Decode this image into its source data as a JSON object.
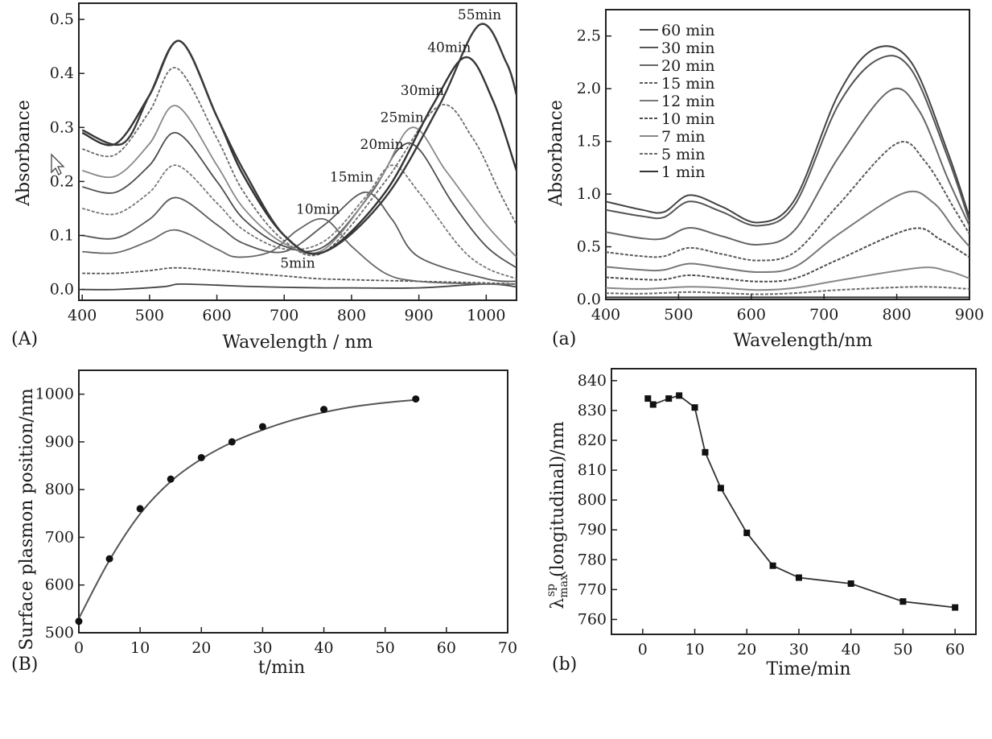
{
  "figure": {
    "panel_letters": [
      "(A)",
      "(a)",
      "(B)",
      "(b)"
    ]
  },
  "chart_data": [
    {
      "type": "line",
      "panel": "(A)",
      "xlabel": "Wavelength / nm",
      "ylabel": "Absorbance",
      "xlim": [
        395,
        1045
      ],
      "ylim": [
        -0.02,
        0.53
      ],
      "xticks": [
        400,
        500,
        600,
        700,
        800,
        900,
        1000
      ],
      "yticks": [
        0.0,
        0.1,
        0.2,
        0.3,
        0.4,
        0.5
      ],
      "grid": false,
      "curve_labels": [
        {
          "text": "5min",
          "x": 720,
          "y": 0.04
        },
        {
          "text": "10min",
          "x": 750,
          "y": 0.14
        },
        {
          "text": "15min",
          "x": 800,
          "y": 0.2
        },
        {
          "text": "20min",
          "x": 845,
          "y": 0.26
        },
        {
          "text": "25min",
          "x": 875,
          "y": 0.31
        },
        {
          "text": "30min",
          "x": 905,
          "y": 0.36
        },
        {
          "text": "40min",
          "x": 945,
          "y": 0.44
        },
        {
          "text": "55min",
          "x": 990,
          "y": 0.5
        }
      ],
      "series": [
        {
          "x": [
            400,
            450,
            520,
            545,
            600,
            640,
            700,
            760,
            800,
            900,
            1000,
            1045
          ],
          "y": [
            0.0,
            0.0,
            0.005,
            0.01,
            0.008,
            0.006,
            0.004,
            0.003,
            0.003,
            0.003,
            0.01,
            0.005
          ]
        },
        {
          "x": [
            400,
            450,
            500,
            540,
            600,
            650,
            700,
            750,
            800,
            900,
            1000,
            1045
          ],
          "y": [
            0.03,
            0.03,
            0.035,
            0.04,
            0.035,
            0.03,
            0.025,
            0.02,
            0.018,
            0.015,
            0.012,
            0.01
          ]
        },
        {
          "x": [
            400,
            450,
            500,
            540,
            600,
            630,
            680,
            720,
            760,
            800,
            850,
            900,
            1000,
            1045
          ],
          "y": [
            0.07,
            0.068,
            0.09,
            0.11,
            0.075,
            0.06,
            0.07,
            0.11,
            0.13,
            0.08,
            0.03,
            0.015,
            0.01,
            0.01
          ]
        },
        {
          "x": [
            400,
            450,
            500,
            540,
            600,
            640,
            700,
            760,
            820,
            860,
            900,
            1000,
            1045
          ],
          "y": [
            0.1,
            0.095,
            0.13,
            0.17,
            0.12,
            0.085,
            0.07,
            0.12,
            0.18,
            0.13,
            0.06,
            0.02,
            0.015
          ]
        },
        {
          "x": [
            400,
            450,
            500,
            540,
            600,
            640,
            700,
            760,
            820,
            860,
            900,
            960,
            1000,
            1045
          ],
          "y": [
            0.15,
            0.14,
            0.18,
            0.23,
            0.16,
            0.11,
            0.075,
            0.09,
            0.17,
            0.23,
            0.18,
            0.08,
            0.04,
            0.02
          ]
        },
        {
          "x": [
            400,
            450,
            500,
            540,
            600,
            640,
            700,
            760,
            830,
            870,
            900,
            950,
            1000,
            1045
          ],
          "y": [
            0.19,
            0.18,
            0.23,
            0.29,
            0.2,
            0.13,
            0.08,
            0.08,
            0.18,
            0.26,
            0.26,
            0.16,
            0.08,
            0.04
          ]
        },
        {
          "x": [
            400,
            450,
            500,
            540,
            600,
            640,
            700,
            760,
            840,
            890,
            940,
            1000,
            1045
          ],
          "y": [
            0.22,
            0.21,
            0.27,
            0.34,
            0.23,
            0.15,
            0.085,
            0.075,
            0.2,
            0.3,
            0.22,
            0.12,
            0.06
          ]
        },
        {
          "x": [
            400,
            450,
            500,
            540,
            600,
            640,
            700,
            760,
            850,
            930,
            980,
            1020,
            1045
          ],
          "y": [
            0.26,
            0.25,
            0.33,
            0.41,
            0.28,
            0.18,
            0.09,
            0.07,
            0.2,
            0.34,
            0.28,
            0.18,
            0.12
          ]
        },
        {
          "x": [
            400,
            450,
            500,
            545,
            600,
            640,
            700,
            760,
            850,
            920,
            970,
            1010,
            1045
          ],
          "y": [
            0.29,
            0.27,
            0.36,
            0.46,
            0.32,
            0.21,
            0.1,
            0.07,
            0.18,
            0.34,
            0.43,
            0.35,
            0.22
          ]
        },
        {
          "x": [
            400,
            460,
            500,
            545,
            600,
            640,
            700,
            760,
            850,
            930,
            990,
            1030,
            1045
          ],
          "y": [
            0.295,
            0.27,
            0.36,
            0.46,
            0.32,
            0.22,
            0.1,
            0.07,
            0.17,
            0.34,
            0.49,
            0.42,
            0.36
          ]
        }
      ]
    },
    {
      "type": "line",
      "panel": "(a)",
      "xlabel": "Wavelength/nm",
      "ylabel": "Absorbance",
      "xlim": [
        400,
        900
      ],
      "ylim": [
        0.0,
        2.75
      ],
      "xticks": [
        400,
        500,
        600,
        700,
        800,
        900
      ],
      "yticks": [
        0.0,
        0.5,
        1.0,
        1.5,
        2.0,
        2.5
      ],
      "grid": false,
      "legend_position": "top-left",
      "series": [
        {
          "name": "60 min",
          "x": [
            400,
            450,
            480,
            515,
            560,
            610,
            660,
            720,
            770,
            820,
            870,
            900
          ],
          "y": [
            0.93,
            0.85,
            0.83,
            0.99,
            0.88,
            0.73,
            0.95,
            1.95,
            2.38,
            2.25,
            1.4,
            0.78
          ]
        },
        {
          "name": "30 min",
          "x": [
            400,
            450,
            480,
            515,
            560,
            610,
            660,
            720,
            775,
            820,
            870,
            900
          ],
          "y": [
            0.85,
            0.79,
            0.78,
            0.93,
            0.83,
            0.7,
            0.9,
            1.85,
            2.28,
            2.18,
            1.35,
            0.74
          ]
        },
        {
          "name": "20 min",
          "x": [
            400,
            450,
            480,
            515,
            560,
            610,
            660,
            720,
            790,
            830,
            870,
            900
          ],
          "y": [
            0.64,
            0.58,
            0.58,
            0.68,
            0.6,
            0.52,
            0.66,
            1.35,
            1.98,
            1.8,
            1.15,
            0.7
          ]
        },
        {
          "name": "15 min",
          "x": [
            400,
            450,
            480,
            515,
            560,
            610,
            660,
            720,
            800,
            840,
            880,
            900
          ],
          "y": [
            0.45,
            0.41,
            0.41,
            0.49,
            0.43,
            0.37,
            0.45,
            0.9,
            1.48,
            1.3,
            0.85,
            0.62
          ]
        },
        {
          "name": "12 min",
          "x": [
            400,
            450,
            480,
            515,
            560,
            610,
            660,
            720,
            810,
            850,
            880,
            900
          ],
          "y": [
            0.31,
            0.28,
            0.28,
            0.34,
            0.3,
            0.26,
            0.31,
            0.62,
            1.01,
            0.92,
            0.66,
            0.5
          ]
        },
        {
          "name": "10 min",
          "x": [
            400,
            450,
            480,
            515,
            560,
            610,
            660,
            720,
            820,
            860,
            900
          ],
          "y": [
            0.21,
            0.19,
            0.19,
            0.23,
            0.2,
            0.17,
            0.2,
            0.38,
            0.67,
            0.57,
            0.4
          ]
        },
        {
          "name": "7 min",
          "x": [
            400,
            450,
            515,
            560,
            610,
            660,
            720,
            830,
            870,
            900
          ],
          "y": [
            0.11,
            0.1,
            0.12,
            0.11,
            0.09,
            0.11,
            0.18,
            0.3,
            0.27,
            0.2
          ]
        },
        {
          "name": "5 min",
          "x": [
            400,
            450,
            515,
            560,
            610,
            660,
            720,
            830,
            900
          ],
          "y": [
            0.06,
            0.055,
            0.07,
            0.06,
            0.05,
            0.06,
            0.09,
            0.12,
            0.1
          ]
        },
        {
          "name": "1 min",
          "x": [
            400,
            500,
            600,
            700,
            800,
            900
          ],
          "y": [
            0.02,
            0.02,
            0.02,
            0.02,
            0.02,
            0.02
          ]
        }
      ]
    },
    {
      "type": "scatter",
      "panel": "(B)",
      "xlabel": "t/min",
      "ylabel": "Surface plasmon position/nm",
      "xlim": [
        0,
        70
      ],
      "ylim": [
        500,
        1050
      ],
      "xticks": [
        0,
        10,
        20,
        30,
        40,
        50,
        60,
        70
      ],
      "yticks": [
        500,
        600,
        700,
        800,
        900,
        1000
      ],
      "grid": false,
      "points": {
        "x": [
          0,
          5,
          10,
          15,
          20,
          25,
          30,
          40,
          55
        ],
        "y": [
          524,
          655,
          760,
          822,
          867,
          900,
          932,
          968,
          990
        ]
      },
      "fit": {
        "x": [
          0,
          5,
          10,
          15,
          20,
          25,
          30,
          35,
          40,
          45,
          50,
          55
        ],
        "y": [
          530,
          652,
          749,
          817,
          864,
          899,
          925,
          946,
          962,
          974,
          982,
          988
        ]
      }
    },
    {
      "type": "line",
      "panel": "(b)",
      "xlabel": "Time/min",
      "ylabel": "λ max sp (longitudinal)/nm",
      "xlim": [
        -6,
        64
      ],
      "ylim": [
        755,
        844
      ],
      "xticks": [
        0,
        10,
        20,
        30,
        40,
        50,
        60
      ],
      "yticks": [
        760,
        770,
        780,
        790,
        800,
        810,
        820,
        830,
        840
      ],
      "grid": false,
      "x": [
        1,
        2,
        5,
        7,
        10,
        12,
        15,
        20,
        25,
        30,
        40,
        50,
        60
      ],
      "y": [
        834,
        832,
        834,
        835,
        831,
        816,
        804,
        789,
        778,
        774,
        772,
        766,
        764
      ]
    }
  ]
}
